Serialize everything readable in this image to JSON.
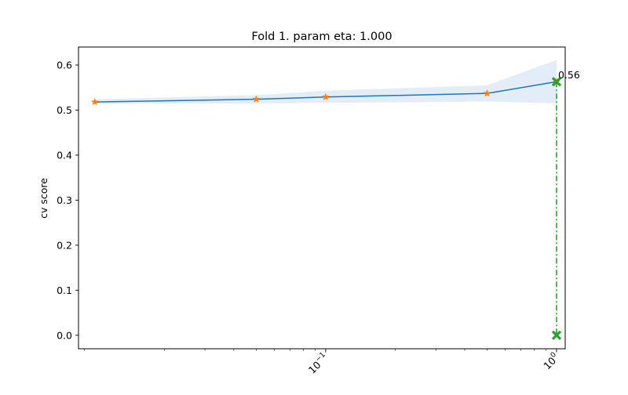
{
  "chart_data": {
    "type": "line",
    "title": "Fold 1. param eta: 1.000",
    "xlabel": "",
    "ylabel": "cv score",
    "x_scale": "log",
    "x_ticks": [
      {
        "value": 0.1,
        "label_base": "10",
        "label_exp": "−1"
      },
      {
        "value": 1.0,
        "label_base": "10",
        "label_exp": "0"
      }
    ],
    "y_ticks": [
      0.0,
      0.1,
      0.2,
      0.3,
      0.4,
      0.5,
      0.6
    ],
    "xlim": [
      0.0085,
      1.09
    ],
    "ylim": [
      -0.03,
      0.64
    ],
    "grid": false,
    "series": [
      {
        "type": "line_with_markers",
        "color": "#1f77b4",
        "marker_color": "#ff7f0e",
        "marker": "star",
        "x": [
          0.01,
          0.05,
          0.1,
          0.5,
          1.0
        ],
        "y": [
          0.518,
          0.524,
          0.529,
          0.537,
          0.563
        ],
        "band_lower": [
          0.514,
          0.515,
          0.516,
          0.519,
          0.515
        ],
        "band_upper": [
          0.524,
          0.533,
          0.543,
          0.555,
          0.611
        ],
        "band_color": "#c6dbef"
      }
    ],
    "highlight": {
      "x": 1.0,
      "y": 0.563,
      "label": "0.56",
      "color": "#2ca02c",
      "marker": "x",
      "drop_to": 0.0
    }
  }
}
